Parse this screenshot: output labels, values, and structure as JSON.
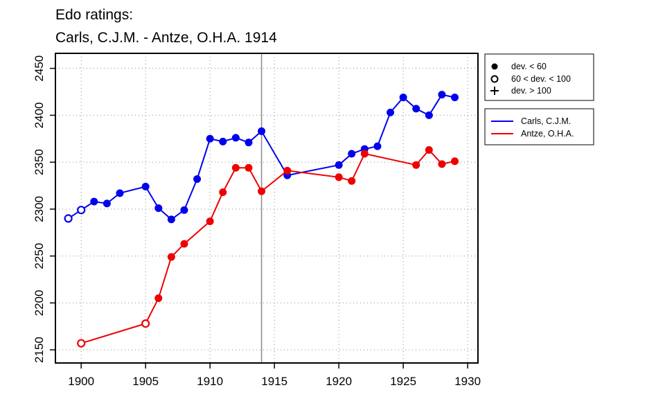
{
  "chart_data": {
    "type": "line",
    "title_lines": [
      "Edo ratings:",
      "Carls, C.J.M. - Antze, O.H.A. 1914"
    ],
    "xlabel": "",
    "ylabel": "",
    "xlim": [
      1898,
      1930.8
    ],
    "ylim": [
      2136,
      2466
    ],
    "xticks": [
      1900,
      1905,
      1910,
      1915,
      1920,
      1925,
      1930
    ],
    "yticks": [
      2150,
      2200,
      2250,
      2300,
      2350,
      2400,
      2450
    ],
    "grid": "dotted",
    "marker_line_year": 1914,
    "marker_legend": [
      {
        "symbol": "filled",
        "label": "dev. < 60"
      },
      {
        "symbol": "open",
        "label": "60 < dev. < 100"
      },
      {
        "symbol": "plus",
        "label": "dev. > 100"
      }
    ],
    "series": [
      {
        "name": "Carls, C.J.M.",
        "color": "#0000ee",
        "points": [
          {
            "x": 1899,
            "y": 2290,
            "m": "open"
          },
          {
            "x": 1900,
            "y": 2299,
            "m": "open"
          },
          {
            "x": 1901,
            "y": 2308,
            "m": "filled"
          },
          {
            "x": 1902,
            "y": 2306,
            "m": "filled"
          },
          {
            "x": 1903,
            "y": 2317,
            "m": "filled"
          },
          {
            "x": 1905,
            "y": 2324,
            "m": "filled"
          },
          {
            "x": 1906,
            "y": 2301,
            "m": "filled"
          },
          {
            "x": 1907,
            "y": 2289,
            "m": "filled"
          },
          {
            "x": 1908,
            "y": 2299,
            "m": "filled"
          },
          {
            "x": 1909,
            "y": 2332,
            "m": "filled"
          },
          {
            "x": 1910,
            "y": 2375,
            "m": "filled"
          },
          {
            "x": 1911,
            "y": 2372,
            "m": "filled"
          },
          {
            "x": 1912,
            "y": 2376,
            "m": "filled"
          },
          {
            "x": 1913,
            "y": 2371,
            "m": "filled"
          },
          {
            "x": 1914,
            "y": 2383,
            "m": "filled"
          },
          {
            "x": 1916,
            "y": 2336,
            "m": "filled"
          },
          {
            "x": 1920,
            "y": 2347,
            "m": "filled"
          },
          {
            "x": 1921,
            "y": 2359,
            "m": "filled"
          },
          {
            "x": 1922,
            "y": 2364,
            "m": "filled"
          },
          {
            "x": 1923,
            "y": 2367,
            "m": "filled"
          },
          {
            "x": 1924,
            "y": 2403,
            "m": "filled"
          },
          {
            "x": 1925,
            "y": 2419,
            "m": "filled"
          },
          {
            "x": 1926,
            "y": 2407,
            "m": "filled"
          },
          {
            "x": 1927,
            "y": 2400,
            "m": "filled"
          },
          {
            "x": 1928,
            "y": 2422,
            "m": "filled"
          },
          {
            "x": 1929,
            "y": 2419,
            "m": "filled"
          }
        ]
      },
      {
        "name": "Antze, O.H.A.",
        "color": "#ee0000",
        "points": [
          {
            "x": 1900,
            "y": 2157,
            "m": "open"
          },
          {
            "x": 1905,
            "y": 2178,
            "m": "open"
          },
          {
            "x": 1906,
            "y": 2205,
            "m": "filled"
          },
          {
            "x": 1907,
            "y": 2249,
            "m": "filled"
          },
          {
            "x": 1908,
            "y": 2263,
            "m": "filled"
          },
          {
            "x": 1910,
            "y": 2287,
            "m": "filled"
          },
          {
            "x": 1911,
            "y": 2318,
            "m": "filled"
          },
          {
            "x": 1912,
            "y": 2344,
            "m": "filled"
          },
          {
            "x": 1913,
            "y": 2344,
            "m": "filled"
          },
          {
            "x": 1914,
            "y": 2319,
            "m": "filled"
          },
          {
            "x": 1916,
            "y": 2341,
            "m": "filled"
          },
          {
            "x": 1920,
            "y": 2334,
            "m": "filled"
          },
          {
            "x": 1921,
            "y": 2330,
            "m": "filled"
          },
          {
            "x": 1922,
            "y": 2359,
            "m": "filled"
          },
          {
            "x": 1926,
            "y": 2347,
            "m": "filled"
          },
          {
            "x": 1927,
            "y": 2363,
            "m": "filled"
          },
          {
            "x": 1928,
            "y": 2348,
            "m": "filled"
          },
          {
            "x": 1929,
            "y": 2351,
            "m": "filled"
          }
        ]
      }
    ]
  }
}
